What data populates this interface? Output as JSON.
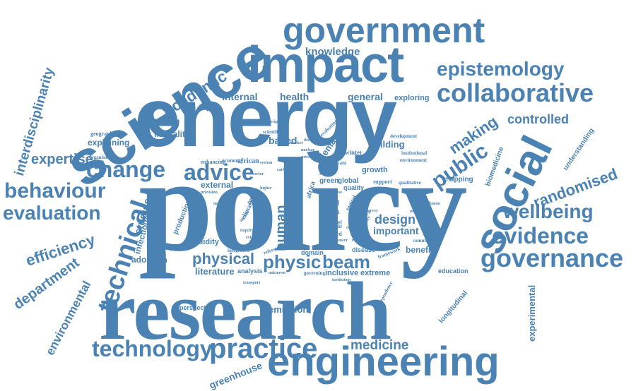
{
  "word_cloud": {
    "color": "#4a82b4",
    "words": {
      "policy": "policy",
      "research": "research",
      "energy": "energy",
      "science": "science",
      "impact": "impact",
      "government": "government",
      "engineering": "engineering",
      "social": "social",
      "practice": "practice",
      "technology": "technology",
      "collaborative": "collaborative",
      "epistemology": "epistemology",
      "governance": "governance",
      "evidence": "evidence",
      "wellbeing": "wellbeing",
      "randomised": "randomised",
      "technical": "technical",
      "behaviour": "behaviour",
      "evaluation": "evaluation",
      "change": "change",
      "advice": "advice",
      "public": "public",
      "making": "making",
      "controlled": "controlled",
      "academic": "academic",
      "knowledge": "knowledge",
      "interdisciplinarity": "interdisciplinarity",
      "expertise": "expertise",
      "efficiency": "efficiency",
      "department": "department",
      "environmental": "environmental",
      "physical": "physical",
      "physic": "physic",
      "beam": "beam",
      "human": "human",
      "design": "design",
      "important": "important",
      "medicine": "medicine",
      "greenhouse": "greenhouse",
      "emission": "emission",
      "internal": "internal",
      "health": "health",
      "general": "general",
      "exploring": "exploring",
      "mortality": "mortality",
      "explaining": "explaining",
      "based": "based",
      "building": "building",
      "demand": "demand",
      "studies": "studies",
      "infectious": "infectious",
      "adoption": "adoption",
      "literature": "literature",
      "analysis": "analysis",
      "benefit": "benefit",
      "experimental": "experimental",
      "longitudinal": "longitudinal",
      "understanding": "understanding",
      "biomedicine": "biomedicine",
      "mapping": "mapping",
      "external": "external",
      "validity": "validity",
      "production": "production",
      "inclusive": "inclusive",
      "extreme": "extreme",
      "disease": "disease",
      "domain": "domain",
      "growth": "growth",
      "global": "global",
      "green": "green",
      "quality": "quality",
      "trial": "trial",
      "data": "data",
      "level": "level",
      "education": "education",
      "perspective": "perspective",
      "enhancing": "enhancing",
      "economy": "economy",
      "african": "african",
      "geographical": "geographical",
      "organisation": "organisation",
      "winter": "winter",
      "climate": "climate",
      "independence": "independence",
      "support": "support",
      "qualitative": "qualitative",
      "community": "community",
      "emphasis": "emphasis",
      "africa": "africa",
      "integrated": "integrated",
      "reference": "reference",
      "governing": "governing",
      "institution": "institution",
      "scientific": "scientific",
      "evaluating": "evaluating",
      "development": "development",
      "institutional": "institutional",
      "environment": "environment",
      "framework": "framework",
      "related": "related",
      "relevant": "relevant",
      "event": "event",
      "inquiry": "inquiry",
      "higher": "higher",
      "project": "project",
      "agenda": "agenda",
      "topical": "topical",
      "giga": "giga",
      "approach": "approach",
      "explain": "explain",
      "provision": "provision",
      "outcome": "outcome",
      "capacity": "capacity",
      "diffusion": "diffusion",
      "discipline": "discipline",
      "unknown": "unknown",
      "survey": "survey",
      "council": "council",
      "energy_sm": "energy",
      "nuclear": "nuclear",
      "system": "system",
      "cost": "cost",
      "evidence_sm": "evidence",
      "network": "network",
      "rural": "rural",
      "sector": "sector",
      "theory": "theory",
      "market": "market",
      "power": "power",
      "low": "low",
      "carbon": "carbon",
      "impact_sm": "impact",
      "transport": "transport"
    }
  }
}
